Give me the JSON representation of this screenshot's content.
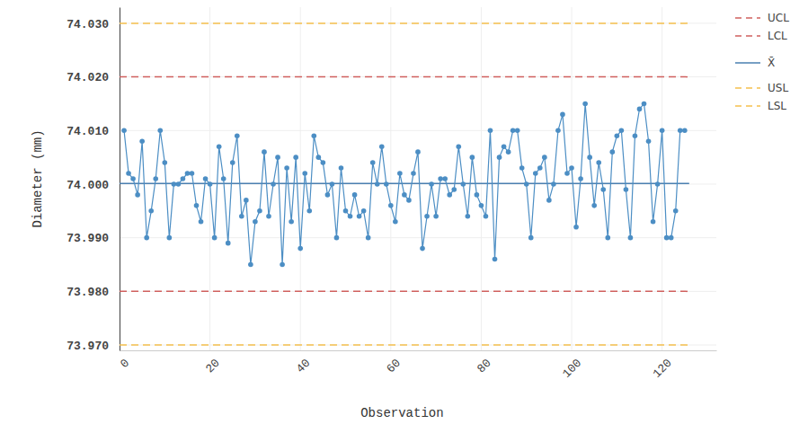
{
  "chart_data": {
    "type": "line",
    "x_label": "Observation",
    "y_label": "Diameter (mm)",
    "color": "#4c8ec4",
    "marker": "circle",
    "grid": true,
    "legend": "top-right",
    "x": [
      1,
      2,
      3,
      4,
      5,
      6,
      7,
      8,
      9,
      10,
      11,
      12,
      13,
      14,
      15,
      16,
      17,
      18,
      19,
      20,
      21,
      22,
      23,
      24,
      25,
      26,
      27,
      28,
      29,
      30,
      31,
      32,
      33,
      34,
      35,
      36,
      37,
      38,
      39,
      40,
      41,
      42,
      43,
      44,
      45,
      46,
      47,
      48,
      49,
      50,
      51,
      52,
      53,
      54,
      55,
      56,
      57,
      58,
      59,
      60,
      61,
      62,
      63,
      64,
      65,
      66,
      67,
      68,
      69,
      70,
      71,
      72,
      73,
      74,
      75,
      76,
      77,
      78,
      79,
      80,
      81,
      82,
      83,
      84,
      85,
      86,
      87,
      88,
      89,
      90,
      91,
      92,
      93,
      94,
      95,
      96,
      97,
      98,
      99,
      100,
      101,
      102,
      103,
      104,
      105,
      106,
      107,
      108,
      109,
      110,
      111,
      112,
      113,
      114,
      115,
      116,
      117,
      118,
      119,
      120,
      121,
      122,
      123,
      124,
      125
    ],
    "values": [
      74.01,
      74.002,
      74.001,
      73.998,
      74.008,
      73.99,
      73.995,
      74.001,
      74.01,
      74.004,
      73.99,
      74.0,
      74.0,
      74.001,
      74.002,
      74.002,
      73.996,
      73.993,
      74.001,
      74.0,
      73.99,
      74.007,
      74.001,
      73.989,
      74.004,
      74.009,
      73.994,
      73.997,
      73.985,
      73.993,
      73.995,
      74.006,
      73.994,
      74.0,
      74.005,
      73.985,
      74.003,
      73.993,
      74.005,
      73.988,
      74.002,
      73.995,
      74.009,
      74.005,
      74.004,
      73.998,
      74.0,
      73.99,
      74.003,
      73.995,
      73.994,
      73.998,
      73.994,
      73.995,
      73.99,
      74.004,
      74.0,
      74.007,
      74.0,
      73.996,
      73.993,
      74.002,
      73.998,
      73.997,
      74.002,
      74.006,
      73.988,
      73.994,
      74.0,
      73.994,
      74.001,
      74.001,
      73.998,
      73.999,
      74.007,
      74.0,
      73.994,
      74.005,
      73.998,
      73.996,
      73.994,
      74.01,
      73.986,
      74.005,
      74.007,
      74.006,
      74.01,
      74.01,
      74.003,
      74.0,
      73.99,
      74.002,
      74.003,
      74.005,
      73.997,
      74.0,
      74.01,
      74.013,
      74.002,
      74.003,
      73.992,
      74.001,
      74.015,
      74.005,
      73.996,
      74.004,
      73.999,
      73.99,
      74.006,
      74.009,
      74.01,
      73.999,
      73.99,
      74.009,
      74.014,
      74.015,
      74.008,
      73.993,
      74.0,
      74.01,
      73.99,
      73.99,
      73.995,
      74.01,
      74.01
    ],
    "reference_lines": [
      {
        "name": "UCL",
        "value": 74.02,
        "color": "#d0605e",
        "line_style": "dashed"
      },
      {
        "name": "LCL",
        "value": 73.98,
        "color": "#d0605e",
        "line_style": "dashed"
      },
      {
        "name": "X̄",
        "value": 74.0001,
        "color": "#4a7fb0",
        "line_style": "solid"
      },
      {
        "name": "USL",
        "value": 74.03,
        "color": "#f5c04e",
        "line_style": "dashed"
      },
      {
        "name": "LSL",
        "value": 73.97,
        "color": "#f5c04e",
        "line_style": "dashed"
      }
    ],
    "xlim": [
      0,
      132
    ],
    "ylim": [
      73.969,
      74.033
    ],
    "xticks": [
      0,
      20,
      40,
      60,
      80,
      100,
      120
    ],
    "yticks": [
      {
        "value": 73.97,
        "label": "73.970"
      },
      {
        "value": 73.98,
        "label": "73.980"
      },
      {
        "value": 73.99,
        "label": "73.990"
      },
      {
        "value": 74.0,
        "label": "74.000"
      },
      {
        "value": 74.01,
        "label": "74.010"
      },
      {
        "value": 74.02,
        "label": "74.020"
      },
      {
        "value": 74.03,
        "label": "74.030"
      }
    ]
  }
}
